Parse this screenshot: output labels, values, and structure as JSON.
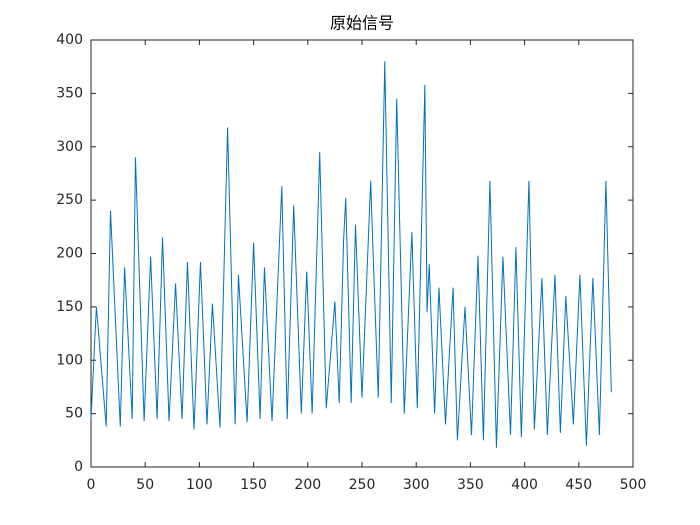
{
  "chart_data": {
    "type": "line",
    "title": "原始信号",
    "x": [
      0,
      4,
      5,
      14,
      18,
      27,
      31,
      38,
      41,
      49,
      55,
      61,
      66,
      72,
      78,
      84,
      89,
      95,
      101,
      107,
      112,
      119,
      126,
      133,
      136,
      144,
      150,
      156,
      160,
      167,
      176,
      181,
      187,
      194,
      199,
      204,
      211,
      217,
      225,
      229,
      233,
      235,
      240,
      244,
      250,
      258,
      260,
      265,
      271,
      277,
      282,
      289,
      296,
      301,
      308,
      310,
      312,
      317,
      321,
      327,
      334,
      338,
      345,
      351,
      357,
      362,
      368,
      374,
      380,
      387,
      392,
      397,
      404,
      409,
      416,
      421,
      428,
      433,
      438,
      445,
      451,
      457,
      463,
      469,
      475,
      480
    ],
    "values": [
      45,
      130,
      150,
      38,
      240,
      38,
      187,
      45,
      290,
      43,
      197,
      45,
      215,
      43,
      172,
      45,
      192,
      35,
      192,
      40,
      153,
      37,
      318,
      40,
      180,
      42,
      210,
      45,
      187,
      43,
      263,
      45,
      245,
      50,
      183,
      50,
      295,
      55,
      155,
      60,
      212,
      252,
      60,
      227,
      65,
      268,
      207,
      65,
      380,
      60,
      345,
      50,
      220,
      55,
      358,
      145,
      190,
      50,
      168,
      40,
      168,
      25,
      150,
      30,
      198,
      25,
      268,
      18,
      197,
      30,
      206,
      28,
      268,
      35,
      177,
      30,
      180,
      32,
      160,
      40,
      180,
      20,
      177,
      30,
      268,
      70
    ],
    "color": "#0072BD",
    "xlim": [
      0,
      500
    ],
    "xticks": [
      0,
      50,
      100,
      150,
      200,
      250,
      300,
      350,
      400,
      450,
      500
    ],
    "ylim": [
      0,
      400
    ],
    "yticks": [
      0,
      50,
      100,
      150,
      200,
      250,
      300,
      350,
      400
    ]
  }
}
